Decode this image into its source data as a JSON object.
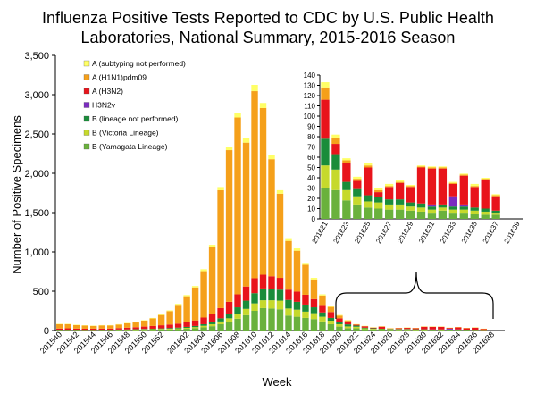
{
  "chart_data": {
    "type": "bar",
    "stacked": true,
    "title_lines": [
      "Influenza Positive Tests Reported to CDC by U.S. Public Health",
      "Laboratories, National Summary, 2015-2016 Season"
    ],
    "xlabel": "Week",
    "ylabel": "Number of Positive Specimens",
    "ylim": [
      0,
      3500
    ],
    "yticks": [
      "0",
      "500",
      "1,000",
      "1,500",
      "2,000",
      "2,500",
      "3,000",
      "3,500"
    ],
    "ytick_values": [
      0,
      500,
      1000,
      1500,
      2000,
      2500,
      3000,
      3500
    ],
    "categories": [
      "201540",
      "201541",
      "201542",
      "201543",
      "201544",
      "201545",
      "201546",
      "201547",
      "201548",
      "201549",
      "201550",
      "201551",
      "201552",
      "201553",
      "201601",
      "201602",
      "201603",
      "201604",
      "201605",
      "201606",
      "201607",
      "201608",
      "201609",
      "201610",
      "201611",
      "201612",
      "201613",
      "201614",
      "201615",
      "201616",
      "201617",
      "201618",
      "201619",
      "201620",
      "201621",
      "201622",
      "201623",
      "201624",
      "201625",
      "201626",
      "201627",
      "201628",
      "201629",
      "201630",
      "201631",
      "201632",
      "201633",
      "201634",
      "201635",
      "201636",
      "201637",
      "201638",
      "201639"
    ],
    "xtick_labels": [
      "201540",
      "201542",
      "201544",
      "201546",
      "201548",
      "201550",
      "201552",
      "201602",
      "201604",
      "201606",
      "201608",
      "201610",
      "201612",
      "201614",
      "201616",
      "201618",
      "201620",
      "201622",
      "201624",
      "201626",
      "201628",
      "201630",
      "201632",
      "201634",
      "201636",
      "201638"
    ],
    "legend_order": [
      "A (subtyping not performed)",
      "A (H1N1)pdm09",
      "A (H3N2)",
      "H3N2v",
      "B (lineage not performed)",
      "B (Victoria Lineage)",
      "B (Yamagata Lineage)"
    ],
    "stack_order": [
      "B (Yamagata Lineage)",
      "B (Victoria Lineage)",
      "B (lineage not performed)",
      "H3N2v",
      "A (H3N2)",
      "A (H1N1)pdm09",
      "A (subtyping not performed)"
    ],
    "colors": {
      "A (subtyping not performed)": "#ffff66",
      "A (H1N1)pdm09": "#f5a01a",
      "A (H3N2)": "#e8141b",
      "H3N2v": "#7b2cc0",
      "B (lineage not performed)": "#1a8c3a",
      "B (Victoria Lineage)": "#c6d92c",
      "B (Yamagata Lineage)": "#6ab13c"
    },
    "series": [
      {
        "name": "B (Yamagata Lineage)",
        "values": [
          5,
          5,
          5,
          4,
          4,
          5,
          5,
          6,
          7,
          8,
          9,
          10,
          12,
          14,
          17,
          22,
          28,
          40,
          55,
          80,
          110,
          150,
          195,
          250,
          285,
          280,
          270,
          190,
          175,
          160,
          145,
          115,
          80,
          50,
          30,
          28,
          18,
          14,
          11,
          10,
          9,
          9,
          8,
          7,
          6,
          8,
          6,
          6,
          5,
          4,
          4,
          0,
          0
        ]
      },
      {
        "name": "B (Victoria Lineage)",
        "values": [
          3,
          3,
          3,
          3,
          3,
          3,
          3,
          4,
          4,
          5,
          6,
          7,
          8,
          9,
          10,
          12,
          15,
          20,
          25,
          35,
          45,
          60,
          80,
          95,
          100,
          105,
          110,
          90,
          90,
          80,
          75,
          60,
          45,
          30,
          22,
          20,
          10,
          8,
          6,
          6,
          5,
          5,
          4,
          4,
          3,
          3,
          3,
          3,
          3,
          3,
          2,
          0,
          0
        ]
      },
      {
        "name": "B (lineage not performed)",
        "values": [
          2,
          2,
          2,
          2,
          2,
          2,
          2,
          3,
          3,
          4,
          5,
          6,
          7,
          8,
          10,
          12,
          15,
          20,
          30,
          40,
          60,
          85,
          105,
          130,
          150,
          145,
          140,
          110,
          100,
          90,
          75,
          55,
          35,
          25,
          26,
          15,
          8,
          7,
          6,
          5,
          5,
          5,
          4,
          4,
          3,
          3,
          3,
          3,
          3,
          3,
          2,
          0,
          0
        ]
      },
      {
        "name": "H3N2v",
        "values": [
          0,
          0,
          0,
          0,
          0,
          0,
          0,
          0,
          0,
          0,
          0,
          0,
          0,
          0,
          0,
          0,
          0,
          0,
          0,
          0,
          0,
          0,
          0,
          0,
          0,
          0,
          0,
          0,
          0,
          0,
          0,
          0,
          0,
          0,
          0,
          0,
          0,
          0,
          0,
          0,
          0,
          0,
          0,
          0,
          2,
          0,
          10,
          2,
          0,
          0,
          0,
          0,
          0
        ]
      },
      {
        "name": "A (H3N2)",
        "values": [
          15,
          18,
          14,
          14,
          15,
          15,
          15,
          18,
          22,
          25,
          30,
          35,
          40,
          45,
          50,
          60,
          70,
          85,
          100,
          130,
          150,
          165,
          180,
          190,
          175,
          160,
          150,
          130,
          130,
          125,
          105,
          95,
          75,
          50,
          38,
          10,
          18,
          8,
          27,
          5,
          12,
          16,
          15,
          35,
          35,
          35,
          12,
          28,
          20,
          28,
          14,
          0,
          0
        ]
      },
      {
        "name": "A (H1N1)pdm09",
        "values": [
          55,
          52,
          45,
          40,
          35,
          40,
          40,
          45,
          55,
          60,
          75,
          95,
          130,
          170,
          240,
          330,
          420,
          590,
          850,
          1500,
          1930,
          2250,
          1830,
          2380,
          2120,
          1490,
          1070,
          620,
          520,
          380,
          250,
          120,
          65,
          35,
          12,
          6,
          3,
          2,
          2,
          2,
          1,
          1,
          1,
          1,
          1,
          1,
          1,
          1,
          1,
          1,
          1,
          0,
          0
        ]
      },
      {
        "name": "A (subtyping not performed)",
        "values": [
          5,
          5,
          5,
          4,
          4,
          4,
          4,
          5,
          5,
          6,
          6,
          7,
          8,
          10,
          12,
          15,
          18,
          25,
          30,
          40,
          45,
          55,
          60,
          80,
          65,
          55,
          45,
          35,
          30,
          25,
          20,
          15,
          10,
          8,
          5,
          3,
          2,
          2,
          2,
          2,
          2,
          2,
          1,
          1,
          1,
          1,
          1,
          1,
          2,
          1,
          1,
          0,
          0
        ]
      }
    ],
    "inset": {
      "type": "bar",
      "stacked": true,
      "categories": [
        "201621",
        "201622",
        "201623",
        "201624",
        "201625",
        "201626",
        "201627",
        "201628",
        "201629",
        "201630",
        "201631",
        "201632",
        "201633",
        "201634",
        "201635",
        "201636",
        "201637",
        "201638",
        "201639"
      ],
      "xtick_labels": [
        "201621",
        "201623",
        "201625",
        "201627",
        "201629",
        "201631",
        "201633",
        "201635",
        "201637",
        "201639"
      ],
      "ylim": [
        0,
        140
      ],
      "yticks": [
        "0",
        "10",
        "20",
        "30",
        "40",
        "50",
        "60",
        "70",
        "80",
        "90",
        "100",
        "110",
        "120",
        "130",
        "140"
      ],
      "ytick_values": [
        0,
        10,
        20,
        30,
        40,
        50,
        60,
        70,
        80,
        90,
        100,
        110,
        120,
        130,
        140
      ]
    }
  }
}
